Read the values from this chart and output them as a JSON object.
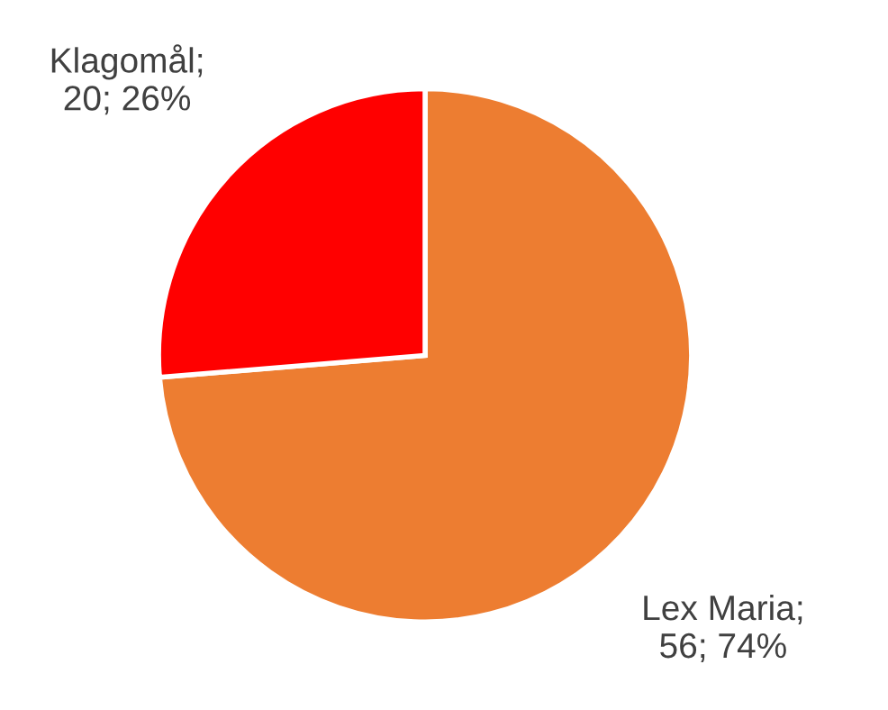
{
  "chart_data": {
    "type": "pie",
    "categories": [
      "Lex Maria",
      "Klagomål"
    ],
    "values": [
      56,
      20
    ],
    "value_labels": [
      "; 56; 74%",
      "; 20; 26%"
    ],
    "colors": [
      "#ed7d31",
      "#ff0000"
    ]
  }
}
